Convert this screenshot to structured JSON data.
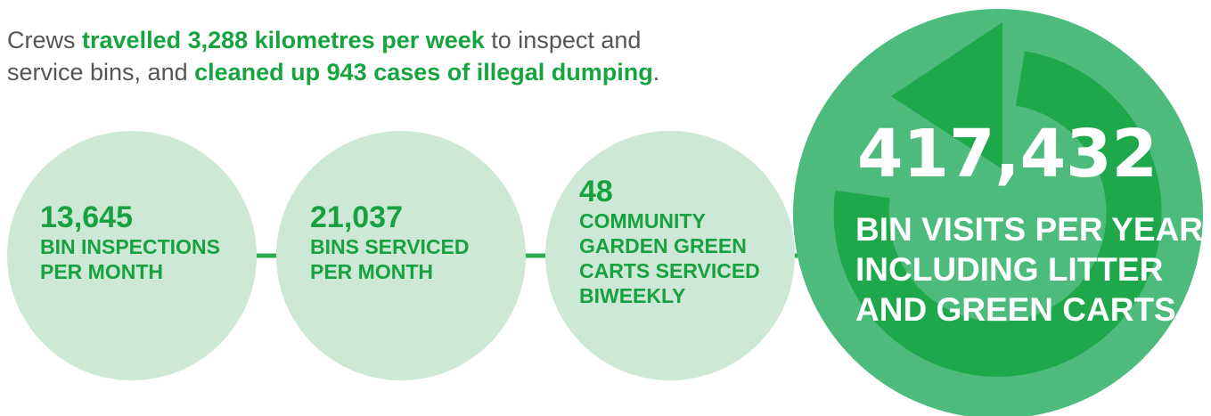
{
  "intro": {
    "lines": [
      [
        {
          "text": "Crews ",
          "bold": false
        },
        {
          "text": "travelled 3,288 kilometres per week",
          "bold": true
        },
        {
          "text": " to inspect and",
          "bold": false
        }
      ],
      [
        {
          "text": "service bins, and ",
          "bold": false
        },
        {
          "text": "cleaned up 943 cases of illegal dumping",
          "bold": true
        },
        {
          "text": ".",
          "bold": false
        }
      ]
    ]
  },
  "stats": [
    {
      "value": "13,645",
      "label": [
        "BIN INSPECTIONS",
        "PER MONTH"
      ]
    },
    {
      "value": "21,037",
      "label": [
        "BINS SERVICED",
        "PER MONTH"
      ]
    },
    {
      "value": "48",
      "label": [
        "COMMUNITY",
        "GARDEN GREEN",
        "CARTS SERVICED",
        "BIWEEKLY"
      ]
    }
  ],
  "highlight": {
    "value": "417,432",
    "label": [
      "BIN VISITS PER YEAR,",
      "INCLUDING LITTER",
      "AND GREEN CARTS"
    ]
  }
}
